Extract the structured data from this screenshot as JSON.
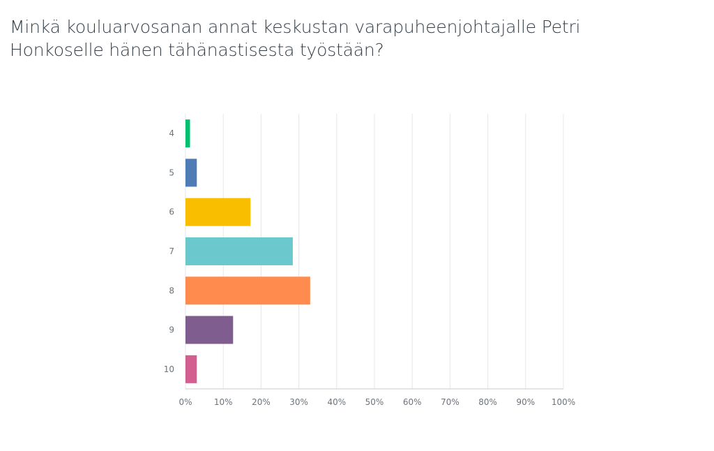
{
  "title": "Minkä kouluarvosanan annat keskustan varapuheenjohtajalle Petri Honkoselle hänen tähänastisesta työstään?",
  "chart_data": {
    "type": "bar",
    "orientation": "horizontal",
    "categories": [
      "4",
      "5",
      "6",
      "7",
      "8",
      "9",
      "10"
    ],
    "values": [
      1.2,
      3.0,
      17.2,
      28.4,
      33.0,
      12.6,
      3.0
    ],
    "value_unit": "%",
    "colors": [
      "#00bf6f",
      "#507cb6",
      "#f9be00",
      "#6bc8cd",
      "#ff8b4f",
      "#7f5e8f",
      "#d25f90"
    ],
    "xlim": [
      0,
      100
    ],
    "xticks": [
      "0%",
      "10%",
      "20%",
      "30%",
      "40%",
      "50%",
      "60%",
      "70%",
      "80%",
      "90%",
      "100%"
    ],
    "grid": true,
    "title": "Minkä kouluarvosanan annat keskustan varapuheenjohtajalle Petri Honkoselle hänen tähänastisesta työstään?",
    "xlabel": "",
    "ylabel": ""
  }
}
